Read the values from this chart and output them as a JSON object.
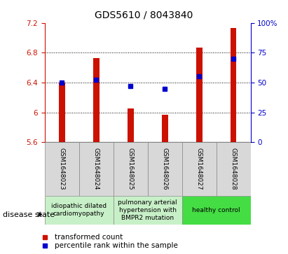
{
  "title": "GDS5610 / 8043840",
  "samples": [
    "GSM1648023",
    "GSM1648024",
    "GSM1648025",
    "GSM1648026",
    "GSM1648027",
    "GSM1648028"
  ],
  "bar_tops": [
    6.4,
    6.73,
    6.05,
    5.97,
    6.87,
    7.13
  ],
  "bar_bottom": 5.6,
  "blue_dots_left": [
    6.4,
    6.44,
    6.35,
    6.32,
    6.48,
    6.72
  ],
  "ylim_left": [
    5.6,
    7.2
  ],
  "ylim_right": [
    0,
    100
  ],
  "yticks_left": [
    5.6,
    6.0,
    6.4,
    6.8,
    7.2
  ],
  "ytick_labels_left": [
    "5.6",
    "6",
    "6.4",
    "6.8",
    "7.2"
  ],
  "yticks_right": [
    0,
    25,
    50,
    75,
    100
  ],
  "ytick_labels_right": [
    "0",
    "25",
    "50",
    "75",
    "100%"
  ],
  "bar_color": "#cc1100",
  "dot_color": "#0000cc",
  "disease_groups": [
    {
      "label": "idiopathic dilated\ncardiomyopathy",
      "start": 0,
      "end": 1,
      "color": "#c8f0c8"
    },
    {
      "label": "pulmonary arterial\nhypertension with\nBMPR2 mutation",
      "start": 2,
      "end": 3,
      "color": "#c8f0c8"
    },
    {
      "label": "healthy control",
      "start": 4,
      "end": 5,
      "color": "#44dd44"
    }
  ],
  "legend_red_label": "transformed count",
  "legend_blue_label": "percentile rank within the sample",
  "disease_state_label": "disease state",
  "title_fontsize": 10,
  "tick_fontsize": 7.5,
  "sample_fontsize": 6.5,
  "disease_fontsize": 6.5,
  "legend_fontsize": 7.5,
  "bar_width": 0.18
}
